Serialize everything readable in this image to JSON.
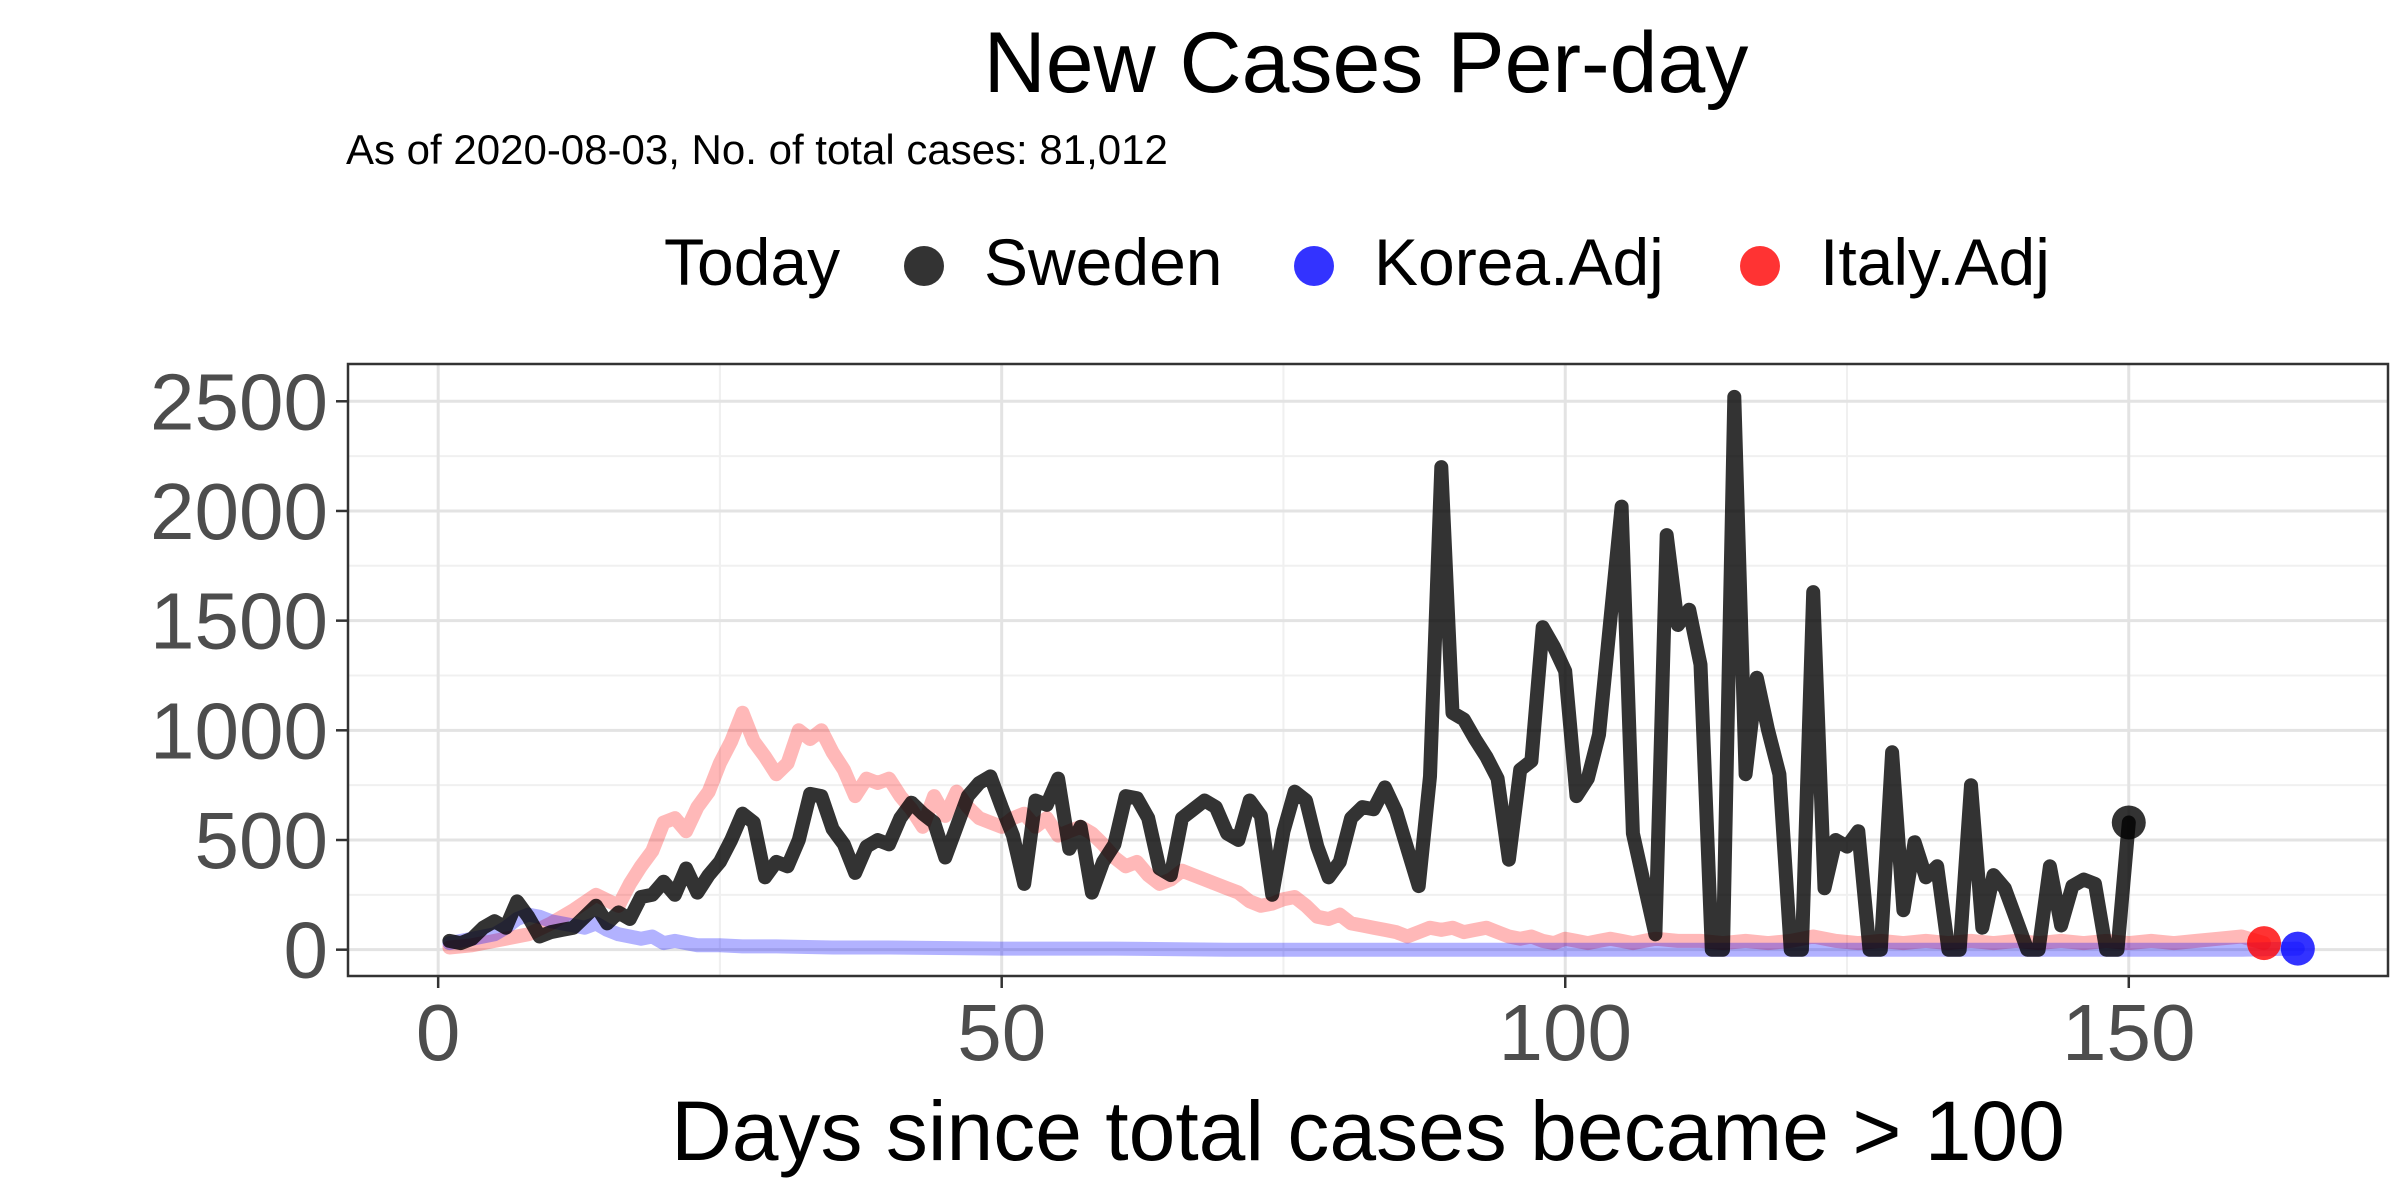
{
  "chart_data": {
    "type": "line",
    "title": "New Cases Per-day",
    "subtitle": "As of 2020-08-03, No. of total cases: 81,012",
    "xlabel": "Days since total cases became > 100",
    "ylabel": "",
    "xlim": [
      -8,
      173
    ],
    "ylim": [
      -120,
      2670
    ],
    "x_ticks": [
      "0",
      "50",
      "100",
      "150"
    ],
    "y_ticks": [
      "0",
      "500",
      "1000",
      "1500",
      "2000",
      "2500"
    ],
    "grid": true,
    "legend": {
      "placement": "top",
      "title": "Today",
      "entries": [
        {
          "label": "Sweden",
          "color": "#000000"
        },
        {
          "label": "Korea.Adj",
          "color": "#0000ff"
        },
        {
          "label": "Italy.Adj",
          "color": "#ff0000"
        }
      ]
    },
    "series": [
      {
        "name": "Italy.Adj",
        "color": "#ff0000",
        "points": [
          [
            1,
            10
          ],
          [
            3,
            20
          ],
          [
            5,
            40
          ],
          [
            8,
            70
          ],
          [
            10,
            120
          ],
          [
            12,
            180
          ],
          [
            14,
            250
          ],
          [
            16,
            200
          ],
          [
            17,
            300
          ],
          [
            18,
            380
          ],
          [
            19,
            450
          ],
          [
            20,
            580
          ],
          [
            21,
            600
          ],
          [
            22,
            540
          ],
          [
            23,
            650
          ],
          [
            24,
            720
          ],
          [
            25,
            850
          ],
          [
            26,
            950
          ],
          [
            27,
            1080
          ],
          [
            28,
            950
          ],
          [
            29,
            880
          ],
          [
            30,
            800
          ],
          [
            31,
            850
          ],
          [
            32,
            1000
          ],
          [
            33,
            960
          ],
          [
            34,
            1000
          ],
          [
            35,
            900
          ],
          [
            36,
            820
          ],
          [
            37,
            700
          ],
          [
            38,
            780
          ],
          [
            39,
            760
          ],
          [
            40,
            780
          ],
          [
            41,
            700
          ],
          [
            42,
            640
          ],
          [
            43,
            560
          ],
          [
            44,
            700
          ],
          [
            45,
            610
          ],
          [
            46,
            720
          ],
          [
            47,
            650
          ],
          [
            48,
            600
          ],
          [
            49,
            580
          ],
          [
            50,
            560
          ],
          [
            51,
            600
          ],
          [
            52,
            620
          ],
          [
            53,
            560
          ],
          [
            54,
            600
          ],
          [
            55,
            520
          ],
          [
            56,
            540
          ],
          [
            57,
            560
          ],
          [
            58,
            530
          ],
          [
            59,
            480
          ],
          [
            60,
            420
          ],
          [
            61,
            380
          ],
          [
            62,
            400
          ],
          [
            63,
            340
          ],
          [
            64,
            300
          ],
          [
            65,
            320
          ],
          [
            66,
            360
          ],
          [
            67,
            340
          ],
          [
            68,
            320
          ],
          [
            69,
            300
          ],
          [
            70,
            280
          ],
          [
            71,
            260
          ],
          [
            72,
            220
          ],
          [
            73,
            200
          ],
          [
            74,
            210
          ],
          [
            75,
            230
          ],
          [
            76,
            240
          ],
          [
            77,
            200
          ],
          [
            78,
            150
          ],
          [
            79,
            140
          ],
          [
            80,
            160
          ],
          [
            81,
            120
          ],
          [
            82,
            110
          ],
          [
            83,
            100
          ],
          [
            84,
            90
          ],
          [
            85,
            80
          ],
          [
            86,
            60
          ],
          [
            87,
            80
          ],
          [
            88,
            100
          ],
          [
            89,
            90
          ],
          [
            90,
            100
          ],
          [
            91,
            80
          ],
          [
            92,
            90
          ],
          [
            93,
            100
          ],
          [
            94,
            80
          ],
          [
            95,
            60
          ],
          [
            96,
            50
          ],
          [
            97,
            60
          ],
          [
            98,
            40
          ],
          [
            99,
            30
          ],
          [
            100,
            50
          ],
          [
            101,
            40
          ],
          [
            102,
            30
          ],
          [
            103,
            40
          ],
          [
            104,
            50
          ],
          [
            105,
            40
          ],
          [
            106,
            30
          ],
          [
            107,
            40
          ],
          [
            108,
            50
          ],
          [
            110,
            40
          ],
          [
            112,
            40
          ],
          [
            114,
            30
          ],
          [
            116,
            40
          ],
          [
            118,
            30
          ],
          [
            120,
            40
          ],
          [
            122,
            60
          ],
          [
            124,
            40
          ],
          [
            126,
            30
          ],
          [
            128,
            40
          ],
          [
            130,
            30
          ],
          [
            132,
            40
          ],
          [
            134,
            30
          ],
          [
            136,
            40
          ],
          [
            138,
            30
          ],
          [
            140,
            40
          ],
          [
            142,
            30
          ],
          [
            144,
            40
          ],
          [
            146,
            30
          ],
          [
            148,
            40
          ],
          [
            150,
            30
          ],
          [
            152,
            40
          ],
          [
            154,
            30
          ],
          [
            156,
            40
          ],
          [
            158,
            50
          ],
          [
            160,
            60
          ],
          [
            162,
            30
          ]
        ],
        "today": [
          162,
          30
        ]
      },
      {
        "name": "Korea.Adj",
        "color": "#0000ff",
        "points": [
          [
            1,
            30
          ],
          [
            3,
            50
          ],
          [
            5,
            70
          ],
          [
            6,
            100
          ],
          [
            7,
            140
          ],
          [
            8,
            160
          ],
          [
            9,
            150
          ],
          [
            10,
            130
          ],
          [
            11,
            120
          ],
          [
            12,
            110
          ],
          [
            13,
            100
          ],
          [
            14,
            120
          ],
          [
            15,
            90
          ],
          [
            16,
            70
          ],
          [
            17,
            60
          ],
          [
            18,
            50
          ],
          [
            19,
            60
          ],
          [
            20,
            30
          ],
          [
            21,
            40
          ],
          [
            22,
            30
          ],
          [
            23,
            20
          ],
          [
            25,
            20
          ],
          [
            27,
            15
          ],
          [
            30,
            15
          ],
          [
            35,
            10
          ],
          [
            40,
            10
          ],
          [
            50,
            5
          ],
          [
            60,
            5
          ],
          [
            70,
            0
          ],
          [
            80,
            0
          ],
          [
            90,
            0
          ],
          [
            100,
            0
          ],
          [
            110,
            0
          ],
          [
            120,
            0
          ],
          [
            130,
            0
          ],
          [
            140,
            0
          ],
          [
            150,
            0
          ],
          [
            160,
            0
          ],
          [
            165,
            5
          ]
        ],
        "today": [
          165,
          5
        ]
      },
      {
        "name": "Sweden",
        "color": "#000000",
        "points": [
          [
            1,
            40
          ],
          [
            2,
            30
          ],
          [
            3,
            50
          ],
          [
            4,
            100
          ],
          [
            5,
            130
          ],
          [
            6,
            100
          ],
          [
            7,
            220
          ],
          [
            8,
            150
          ],
          [
            9,
            60
          ],
          [
            10,
            80
          ],
          [
            11,
            90
          ],
          [
            12,
            100
          ],
          [
            13,
            150
          ],
          [
            14,
            200
          ],
          [
            15,
            120
          ],
          [
            16,
            170
          ],
          [
            17,
            140
          ],
          [
            18,
            240
          ],
          [
            19,
            250
          ],
          [
            20,
            310
          ],
          [
            21,
            250
          ],
          [
            22,
            370
          ],
          [
            23,
            260
          ],
          [
            24,
            340
          ],
          [
            25,
            400
          ],
          [
            26,
            500
          ],
          [
            27,
            620
          ],
          [
            28,
            580
          ],
          [
            29,
            330
          ],
          [
            30,
            400
          ],
          [
            31,
            380
          ],
          [
            32,
            500
          ],
          [
            33,
            710
          ],
          [
            34,
            700
          ],
          [
            35,
            550
          ],
          [
            36,
            480
          ],
          [
            37,
            350
          ],
          [
            38,
            470
          ],
          [
            39,
            500
          ],
          [
            40,
            480
          ],
          [
            41,
            600
          ],
          [
            42,
            670
          ],
          [
            43,
            620
          ],
          [
            44,
            580
          ],
          [
            45,
            420
          ],
          [
            46,
            560
          ],
          [
            47,
            700
          ],
          [
            48,
            760
          ],
          [
            49,
            790
          ],
          [
            50,
            650
          ],
          [
            51,
            520
          ],
          [
            52,
            300
          ],
          [
            53,
            680
          ],
          [
            54,
            660
          ],
          [
            55,
            780
          ],
          [
            56,
            460
          ],
          [
            57,
            560
          ],
          [
            58,
            260
          ],
          [
            59,
            400
          ],
          [
            60,
            480
          ],
          [
            61,
            700
          ],
          [
            62,
            690
          ],
          [
            63,
            600
          ],
          [
            64,
            370
          ],
          [
            65,
            340
          ],
          [
            66,
            600
          ],
          [
            67,
            640
          ],
          [
            68,
            680
          ],
          [
            69,
            650
          ],
          [
            70,
            530
          ],
          [
            71,
            500
          ],
          [
            72,
            680
          ],
          [
            73,
            610
          ],
          [
            74,
            250
          ],
          [
            75,
            540
          ],
          [
            76,
            720
          ],
          [
            77,
            680
          ],
          [
            78,
            470
          ],
          [
            79,
            330
          ],
          [
            80,
            400
          ],
          [
            81,
            600
          ],
          [
            82,
            650
          ],
          [
            83,
            640
          ],
          [
            84,
            740
          ],
          [
            85,
            630
          ],
          [
            86,
            460
          ],
          [
            87,
            290
          ],
          [
            88,
            790
          ],
          [
            89,
            2200
          ],
          [
            90,
            1080
          ],
          [
            91,
            1050
          ],
          [
            92,
            960
          ],
          [
            93,
            880
          ],
          [
            94,
            780
          ],
          [
            95,
            410
          ],
          [
            96,
            820
          ],
          [
            97,
            860
          ],
          [
            98,
            1470
          ],
          [
            99,
            1380
          ],
          [
            100,
            1270
          ],
          [
            101,
            700
          ],
          [
            102,
            780
          ],
          [
            103,
            980
          ],
          [
            104,
            1500
          ],
          [
            105,
            2020
          ],
          [
            106,
            530
          ],
          [
            107,
            300
          ],
          [
            108,
            70
          ],
          [
            109,
            1890
          ],
          [
            110,
            1480
          ],
          [
            111,
            1550
          ],
          [
            112,
            1300
          ],
          [
            113,
            0
          ],
          [
            114,
            0
          ],
          [
            115,
            2520
          ],
          [
            116,
            800
          ],
          [
            117,
            1240
          ],
          [
            118,
            1000
          ],
          [
            119,
            800
          ],
          [
            120,
            0
          ],
          [
            121,
            0
          ],
          [
            122,
            1630
          ],
          [
            123,
            280
          ],
          [
            124,
            500
          ],
          [
            125,
            470
          ],
          [
            126,
            540
          ],
          [
            127,
            0
          ],
          [
            128,
            0
          ],
          [
            129,
            900
          ],
          [
            130,
            180
          ],
          [
            131,
            490
          ],
          [
            132,
            330
          ],
          [
            133,
            380
          ],
          [
            134,
            0
          ],
          [
            135,
            0
          ],
          [
            136,
            750
          ],
          [
            137,
            100
          ],
          [
            138,
            340
          ],
          [
            139,
            280
          ],
          [
            140,
            140
          ],
          [
            141,
            0
          ],
          [
            142,
            0
          ],
          [
            143,
            380
          ],
          [
            144,
            110
          ],
          [
            145,
            290
          ],
          [
            146,
            320
          ],
          [
            147,
            300
          ],
          [
            148,
            0
          ],
          [
            149,
            0
          ],
          [
            150,
            580
          ]
        ],
        "today": [
          150,
          580
        ]
      }
    ]
  }
}
